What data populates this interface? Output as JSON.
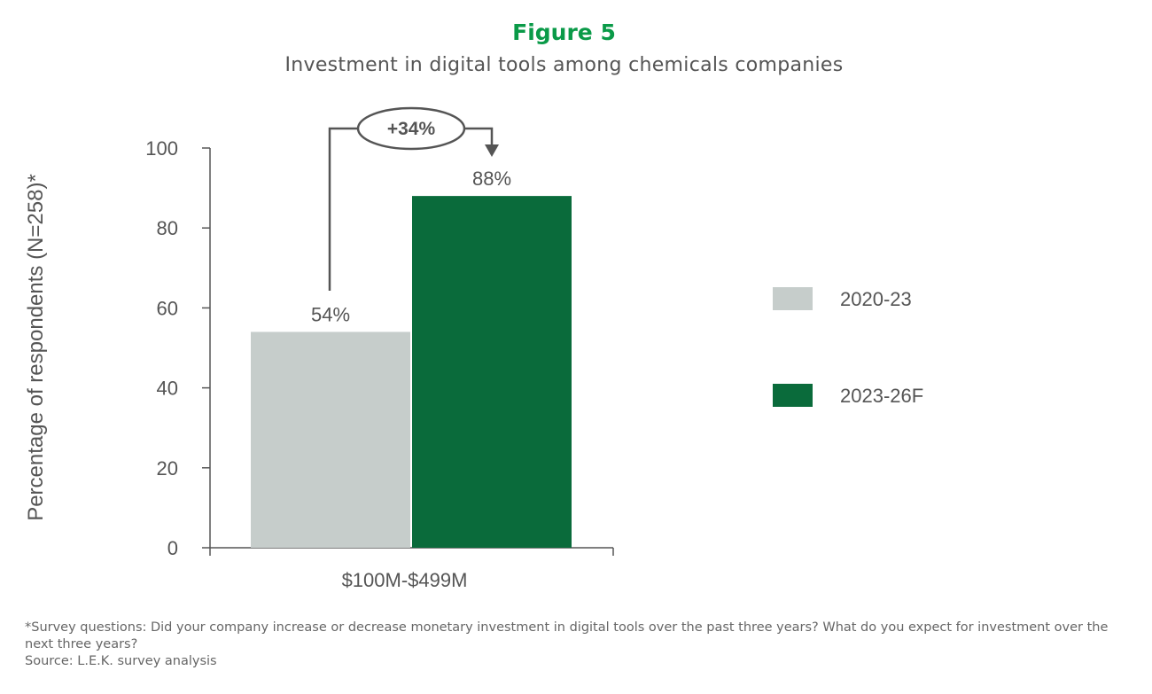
{
  "chart_data": {
    "type": "bar",
    "title": "Figure 5",
    "subtitle": "Investment in digital tools among chemicals companies",
    "xlabel": "",
    "ylabel": "Percentage of respondents (N=258)*",
    "ylim": [
      0,
      100
    ],
    "yticks": [
      0,
      20,
      40,
      60,
      80,
      100
    ],
    "categories": [
      "$100M-$499M"
    ],
    "series": [
      {
        "name": "2020-23",
        "values": [
          54
        ],
        "label": "54%",
        "color": "#c6cdcb"
      },
      {
        "name": "2023-26F",
        "values": [
          88
        ],
        "label": "88%",
        "color": "#0a6b3b"
      }
    ],
    "annotation": "+34%",
    "grid": false,
    "legend_position": "right"
  },
  "notes": {
    "footnote": "*Survey questions: Did your company increase or decrease monetary investment in digital tools over the past three years? What do you expect for investment over the next three years?",
    "source": "Source: L.E.K. survey analysis"
  }
}
